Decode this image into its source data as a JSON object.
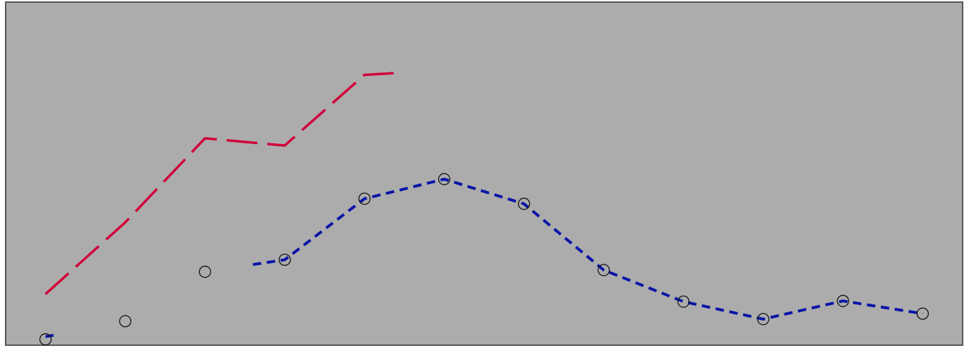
{
  "colors": {
    "plot_background": "#acacac",
    "frame": "#555555",
    "series_red": "#d1003a",
    "series_blue": "#0a14a8",
    "marker": "#111111"
  },
  "chart_data": {
    "type": "line",
    "title": "",
    "xlabel": "",
    "ylabel": "",
    "axes_visible": false,
    "grid": false,
    "legend": "none",
    "x": [
      1,
      2,
      3,
      4,
      5,
      6,
      7,
      8,
      9,
      10,
      11,
      12
    ],
    "xlim": [
      0.5,
      12.5
    ],
    "ylim": [
      0,
      100
    ],
    "series": [
      {
        "style": "long-dash",
        "color": "#d1003a",
        "markers": false,
        "points": [
          [
            1,
            14.9
          ],
          [
            2,
            35.8
          ],
          [
            3,
            60.3
          ],
          [
            4,
            58.2
          ],
          [
            5,
            78.8
          ],
          [
            5.45,
            79.4
          ]
        ]
      },
      {
        "style": "short-dash",
        "color": "#0a14a8",
        "markers": false,
        "points": [
          [
            1,
            2.5
          ],
          [
            1.1,
            2.9
          ]
        ]
      },
      {
        "style": "short-dash",
        "color": "#0a14a8",
        "markers": false,
        "points": [
          [
            3.6,
            23.5
          ],
          [
            4,
            24.9
          ],
          [
            5,
            42.7
          ],
          [
            6,
            48.4
          ],
          [
            7,
            41.2
          ],
          [
            8,
            21.9
          ],
          [
            9,
            12.7
          ],
          [
            10,
            7.6
          ],
          [
            11,
            12.9
          ],
          [
            12,
            9.2
          ]
        ]
      },
      {
        "style": "markers",
        "marker": "open-circle",
        "color": "#111111",
        "points": [
          [
            1,
            1.7
          ],
          [
            2,
            7.0
          ],
          [
            3,
            21.4
          ],
          [
            4,
            24.9
          ],
          [
            5,
            42.7
          ],
          [
            6,
            48.4
          ],
          [
            7,
            41.2
          ],
          [
            8,
            21.9
          ],
          [
            9,
            12.7
          ],
          [
            10,
            7.6
          ],
          [
            11,
            12.9
          ],
          [
            12,
            9.2
          ]
        ]
      }
    ]
  }
}
